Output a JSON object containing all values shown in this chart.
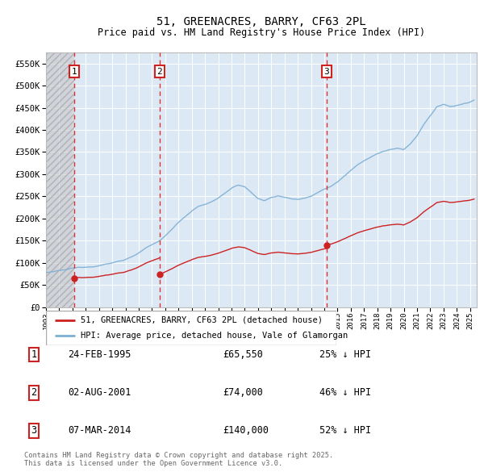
{
  "title": "51, GREENACRES, BARRY, CF63 2PL",
  "subtitle": "Price paid vs. HM Land Registry's House Price Index (HPI)",
  "sales": [
    {
      "num": 1,
      "date": "24-FEB-1995",
      "date_x": 1995.12,
      "price": 65550,
      "pct": "25%",
      "dir": "↓"
    },
    {
      "num": 2,
      "date": "02-AUG-2001",
      "date_x": 2001.58,
      "price": 74000,
      "pct": "46%",
      "dir": "↓"
    },
    {
      "num": 3,
      "date": "07-MAR-2014",
      "date_x": 2014.18,
      "price": 140000,
      "pct": "52%",
      "dir": "↓"
    }
  ],
  "ylim": [
    0,
    575000
  ],
  "xlim": [
    1993.0,
    2025.5
  ],
  "yticks": [
    0,
    50000,
    100000,
    150000,
    200000,
    250000,
    300000,
    350000,
    400000,
    450000,
    500000,
    550000
  ],
  "ytick_labels": [
    "£0",
    "£50K",
    "£100K",
    "£150K",
    "£200K",
    "£250K",
    "£300K",
    "£350K",
    "£400K",
    "£450K",
    "£500K",
    "£550K"
  ],
  "hpi_color": "#7bafd4",
  "price_color": "#cc2222",
  "marker_box_color": "#cc2222",
  "dashed_line_color": "#dd3333",
  "bg_color": "#dde8f5",
  "grid_color": "#ffffff",
  "legend_line_red": "51, GREENACRES, BARRY, CF63 2PL (detached house)",
  "legend_line_blue": "HPI: Average price, detached house, Vale of Glamorgan",
  "footer": "Contains HM Land Registry data © Crown copyright and database right 2025.\nThis data is licensed under the Open Government Licence v3.0.",
  "hatch_end_x": 1995.12,
  "hpi_anchors": [
    [
      1993.0,
      78000
    ],
    [
      1993.5,
      79000
    ],
    [
      1994.0,
      81000
    ],
    [
      1994.5,
      83000
    ],
    [
      1995.0,
      86000
    ],
    [
      1995.5,
      87500
    ],
    [
      1996.0,
      89000
    ],
    [
      1996.5,
      91000
    ],
    [
      1997.0,
      94000
    ],
    [
      1997.5,
      97000
    ],
    [
      1998.0,
      100000
    ],
    [
      1998.5,
      104000
    ],
    [
      1999.0,
      108000
    ],
    [
      1999.5,
      115000
    ],
    [
      2000.0,
      123000
    ],
    [
      2000.5,
      133000
    ],
    [
      2001.0,
      140000
    ],
    [
      2001.5,
      148000
    ],
    [
      2002.0,
      160000
    ],
    [
      2002.5,
      175000
    ],
    [
      2003.0,
      192000
    ],
    [
      2003.5,
      205000
    ],
    [
      2004.0,
      218000
    ],
    [
      2004.5,
      228000
    ],
    [
      2005.0,
      232000
    ],
    [
      2005.5,
      238000
    ],
    [
      2006.0,
      247000
    ],
    [
      2006.5,
      258000
    ],
    [
      2007.0,
      268000
    ],
    [
      2007.5,
      275000
    ],
    [
      2008.0,
      272000
    ],
    [
      2008.5,
      258000
    ],
    [
      2009.0,
      245000
    ],
    [
      2009.5,
      240000
    ],
    [
      2010.0,
      248000
    ],
    [
      2010.5,
      252000
    ],
    [
      2011.0,
      248000
    ],
    [
      2011.5,
      245000
    ],
    [
      2012.0,
      243000
    ],
    [
      2012.5,
      247000
    ],
    [
      2013.0,
      252000
    ],
    [
      2013.5,
      260000
    ],
    [
      2014.0,
      268000
    ],
    [
      2014.5,
      275000
    ],
    [
      2015.0,
      285000
    ],
    [
      2015.5,
      298000
    ],
    [
      2016.0,
      312000
    ],
    [
      2016.5,
      325000
    ],
    [
      2017.0,
      335000
    ],
    [
      2017.5,
      343000
    ],
    [
      2018.0,
      350000
    ],
    [
      2018.5,
      356000
    ],
    [
      2019.0,
      360000
    ],
    [
      2019.5,
      362000
    ],
    [
      2020.0,
      358000
    ],
    [
      2020.5,
      372000
    ],
    [
      2021.0,
      390000
    ],
    [
      2021.5,
      415000
    ],
    [
      2022.0,
      435000
    ],
    [
      2022.5,
      455000
    ],
    [
      2023.0,
      460000
    ],
    [
      2023.5,
      455000
    ],
    [
      2024.0,
      458000
    ],
    [
      2024.5,
      462000
    ],
    [
      2025.0,
      465000
    ],
    [
      2025.3,
      470000
    ]
  ]
}
